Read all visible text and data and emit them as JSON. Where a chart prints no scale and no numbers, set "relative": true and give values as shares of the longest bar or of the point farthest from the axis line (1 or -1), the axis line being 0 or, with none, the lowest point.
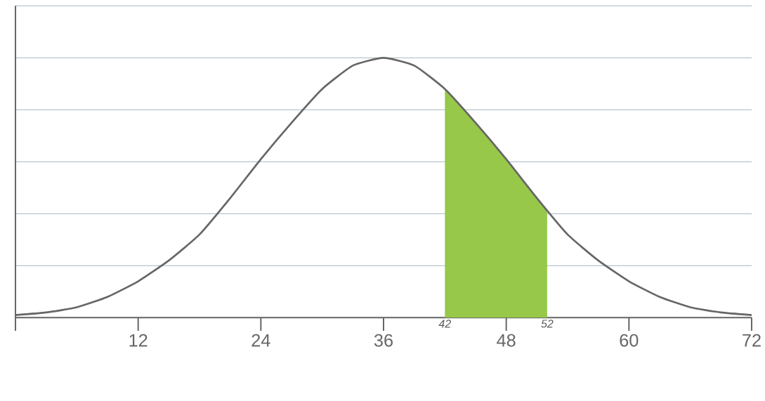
{
  "chart_data": {
    "type": "line",
    "color": "#666666",
    "relative": true,
    "series": [
      {
        "type": "area",
        "color": "#97c84a",
        "x": [
          42,
          45,
          48,
          51,
          52
        ],
        "values": [
          0.88,
          0.75,
          0.61,
          0.46,
          0.41
        ]
      },
      {
        "color": "#666666",
        "x": [
          0,
          3,
          6,
          9,
          12,
          15,
          18,
          21,
          24,
          27,
          30,
          33,
          36,
          39,
          42,
          45,
          48,
          51,
          54,
          57,
          60,
          63,
          66,
          69,
          72
        ],
        "values": [
          0.01,
          0.02,
          0.04,
          0.08,
          0.14,
          0.22,
          0.32,
          0.46,
          0.61,
          0.75,
          0.88,
          0.97,
          1,
          0.97,
          0.88,
          0.75,
          0.61,
          0.46,
          0.32,
          0.22,
          0.14,
          0.08,
          0.04,
          0.02,
          0.01
        ]
      }
    ],
    "xlim": [
      0,
      72
    ],
    "xticks": [
      {
        "value": 0,
        "label": null
      },
      12,
      24,
      36,
      48,
      60,
      72
    ],
    "grid": "y",
    "annotations": [
      {
        "text": "42",
        "x": 42,
        "y": 0
      },
      {
        "text": "52",
        "x": 52,
        "y": 0
      }
    ]
  }
}
